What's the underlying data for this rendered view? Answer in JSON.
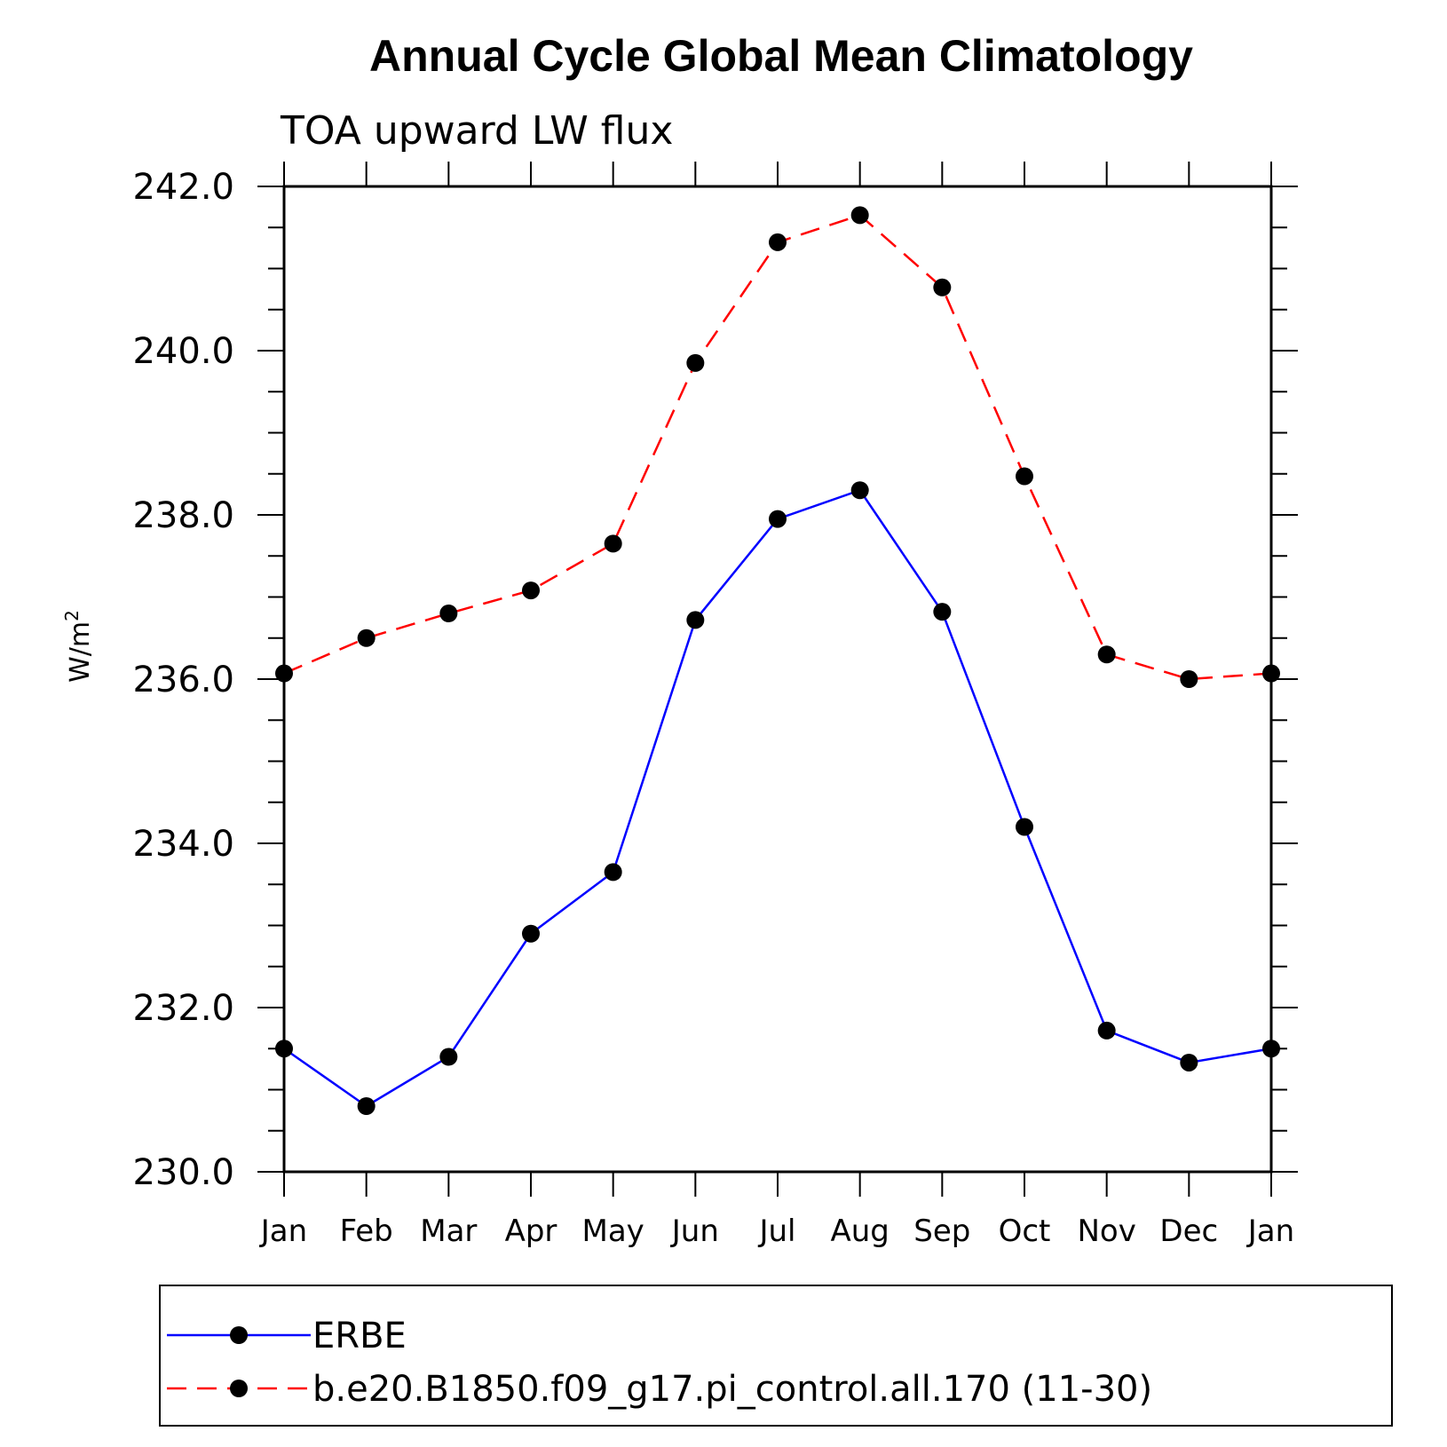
{
  "chart_data": {
    "type": "line",
    "title": "Annual Cycle Global Mean Climatology",
    "subtitle": "TOA upward LW flux",
    "ylabel": "W/m",
    "ylabel_sup": "2",
    "xlabel": "",
    "categories": [
      "Jan",
      "Feb",
      "Mar",
      "Apr",
      "May",
      "Jun",
      "Jul",
      "Aug",
      "Sep",
      "Oct",
      "Nov",
      "Dec",
      "Jan"
    ],
    "ylim": [
      230.0,
      242.0
    ],
    "yticks": [
      "230.0",
      "232.0",
      "234.0",
      "236.0",
      "238.0",
      "240.0",
      "242.0"
    ],
    "ytick_values": [
      230,
      232,
      234,
      236,
      238,
      240,
      242
    ],
    "yminor_step": 0.5,
    "grid": false,
    "legend": "bottom",
    "series": [
      {
        "name": "ERBE",
        "color": "#0000ff",
        "dash": "solid",
        "values": [
          231.5,
          230.8,
          231.4,
          232.9,
          233.65,
          236.72,
          237.95,
          238.3,
          236.82,
          234.2,
          231.72,
          231.33,
          231.5
        ]
      },
      {
        "name": "b.e20.B1850.f09_g17.pi_control.all.170 (11-30)",
        "color": "#ff0000",
        "dash": "dashed",
        "values": [
          236.07,
          236.5,
          236.8,
          237.08,
          237.65,
          239.85,
          241.32,
          241.65,
          240.77,
          238.47,
          236.3,
          236.0,
          236.07
        ]
      }
    ]
  }
}
